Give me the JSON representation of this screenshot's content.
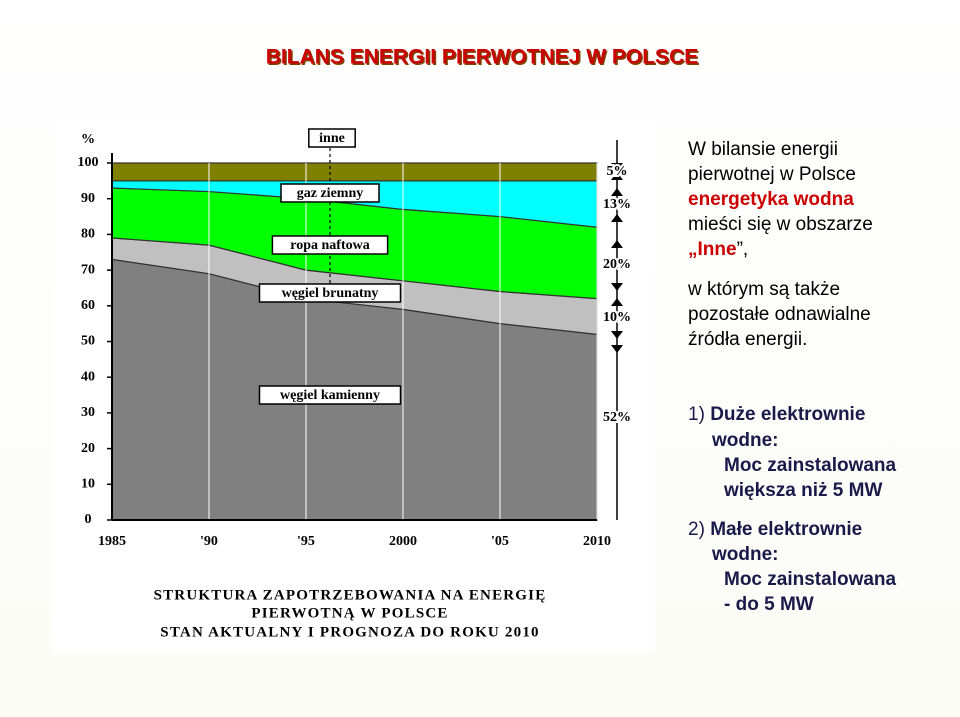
{
  "header": {
    "title": "BILANS ENERGII PIERWOTNEJ W POLSCE"
  },
  "chart_data": {
    "type": "stacked_area",
    "y_label": "%",
    "categories": [
      "1985",
      "'90",
      "'95",
      "2000",
      "'05",
      "2010"
    ],
    "series": [
      {
        "name": "węgiel kamienny",
        "color": "#808080",
        "values": [
          73,
          69,
          62,
          59,
          55,
          52
        ]
      },
      {
        "name": "węgiel brunatny",
        "color": "#c0c0c0",
        "values": [
          6,
          8,
          8,
          8,
          9,
          10
        ]
      },
      {
        "name": "ropa naftowa",
        "color": "#00ff00",
        "values": [
          14,
          15,
          20,
          20,
          21,
          20
        ]
      },
      {
        "name": "gaz ziemny",
        "color": "#00ffff",
        "values": [
          2,
          3,
          5,
          8,
          10,
          13
        ]
      },
      {
        "name": "inne",
        "color": "#808000",
        "values": [
          5,
          5,
          5,
          5,
          5,
          5
        ]
      }
    ],
    "ylim": [
      0,
      100
    ],
    "yticks": [
      0,
      10,
      20,
      30,
      40,
      50,
      60,
      70,
      80,
      90,
      100
    ],
    "annotations": [
      "5%",
      "13%",
      "20%",
      "10%",
      "52%"
    ],
    "caption": [
      "STRUKTURA ZAPOTRZEBOWANIA NA ENERGIĘ",
      "PIERWOTNĄ W POLSCE",
      "STAN AKTUALNY I PROGNOZA DO ROKU 2010"
    ]
  },
  "paragraphs": [
    {
      "lines": [
        [
          {
            "text": "W bilansie energii",
            "color": "#000000"
          }
        ],
        [
          {
            "text": "pierwotnej w Polsce",
            "color": "#000000"
          }
        ],
        [
          {
            "text": "energetyka wodna",
            "color": "#cc0000"
          }
        ],
        [
          {
            "text": "mieści się w obszarze",
            "color": "#000000"
          }
        ],
        [
          {
            "text": "„Inne",
            "color": "#cc0000"
          },
          {
            "text": "”,",
            "color": "#000000"
          }
        ],
        [
          {
            "text": "w którym są także",
            "color": "#000000"
          }
        ],
        [
          {
            "text": "pozostałe odnawialne",
            "color": "#000000"
          }
        ],
        [
          {
            "text": "źródła energii.",
            "color": "#000000"
          }
        ]
      ]
    },
    {
      "lines": [
        [
          {
            "text": "1) ",
            "color": "#1a1a4a"
          },
          {
            "text": "Duże elektrownie",
            "color": "#1a1a4a"
          }
        ],
        [
          {
            "text": "wodne:",
            "color": "#1a1a4a"
          }
        ],
        [
          {
            "text": "Moc zainstalowana",
            "color": "#1a1a4a"
          }
        ],
        [
          {
            "text": "większa niż 5 MW",
            "color": "#1a1a4a"
          }
        ],
        [
          {
            "text": "2) ",
            "color": "#1a1a4a"
          },
          {
            "text": "Małe elektrownie",
            "color": "#1a1a4a"
          }
        ],
        [
          {
            "text": "wodne:",
            "color": "#1a1a4a"
          }
        ],
        [
          {
            "text": "Moc zainstalowana",
            "color": "#1a1a4a"
          }
        ],
        [
          {
            "text": "- do 5 MW",
            "color": "#1a1a4a"
          }
        ]
      ]
    }
  ]
}
